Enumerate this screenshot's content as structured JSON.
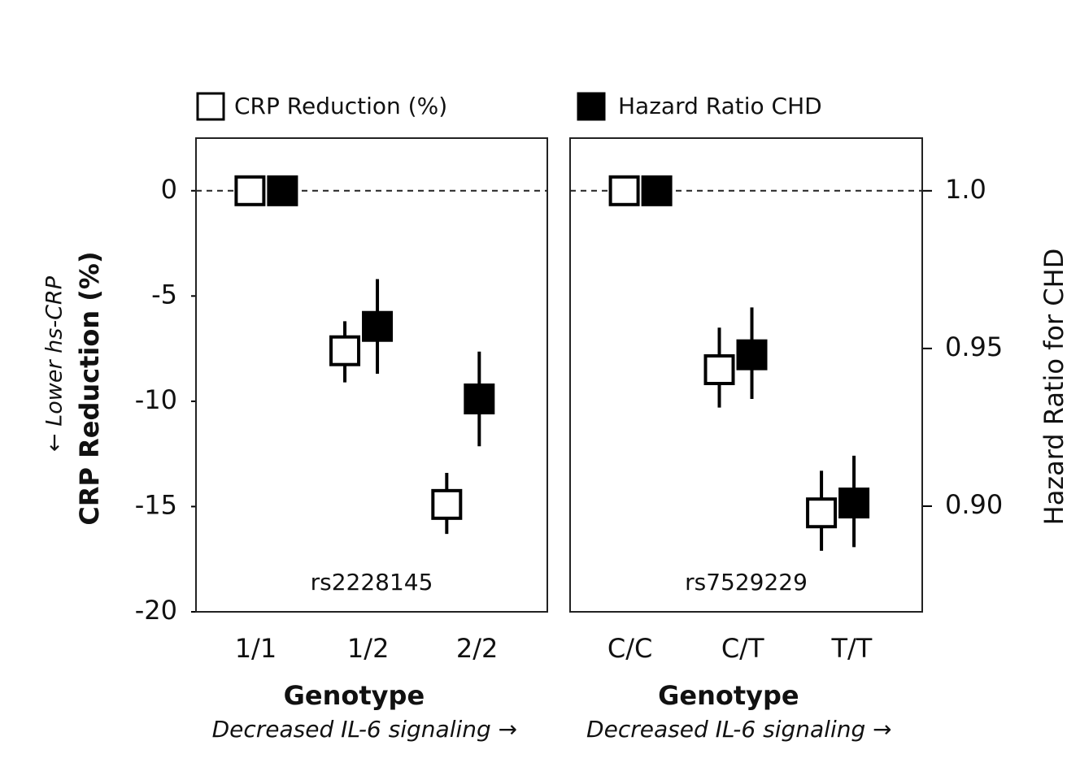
{
  "chart_data": {
    "type": "dot-errorbar",
    "ylabel": "CRP Reduction (%)",
    "ylabel_note": "← Lower hs-CRP",
    "y2label": "Hazard Ratio for CHD",
    "ylim": [
      -20,
      2.5
    ],
    "yticks": [
      0,
      -5,
      -10,
      -15,
      -20
    ],
    "y2lim": [
      0.8665,
      1.0167
    ],
    "y2ticks": [
      {
        "value": 1,
        "label": "1.0"
      },
      0.95,
      {
        "value": 0.9,
        "label": "0.90"
      }
    ],
    "reference_line": 0,
    "series": [
      {
        "name": "CRP Reduction (%)",
        "color": "#ffffff",
        "axis": "y"
      },
      {
        "name": "Hazard Ratio CHD",
        "color": "#000000",
        "axis": "y2"
      }
    ],
    "panels": [
      {
        "label": "rs2228145",
        "categories": [
          "1/1",
          "1/2",
          "2/2"
        ],
        "xlabel": "Genotype",
        "xsublabel": "Decreased IL-6 signaling →",
        "series": [
          {
            "values": [
              0,
              -7.6,
              -14.9
            ],
            "low": [
              0,
              -9.1,
              -16.3
            ],
            "high": [
              0,
              -6.2,
              -13.4
            ]
          },
          {
            "values": [
              1,
              0.957,
              0.934
            ],
            "low": [
              1,
              0.942,
              0.919
            ],
            "high": [
              1,
              0.972,
              0.949
            ]
          }
        ]
      },
      {
        "label": "rs7529229",
        "categories": [
          "C/C",
          "C/T",
          "T/T"
        ],
        "xlabel": "Genotype",
        "xsublabel": "Decreased IL-6 signaling →",
        "series": [
          {
            "values": [
              0,
              -8.5,
              -15.3
            ],
            "low": [
              0,
              -10.3,
              -17.1
            ],
            "high": [
              0,
              -6.5,
              -13.3
            ]
          },
          {
            "values": [
              1,
              0.948,
              0.901
            ],
            "low": [
              1,
              0.934,
              0.887
            ],
            "high": [
              1,
              0.963,
              0.916
            ]
          }
        ]
      }
    ]
  }
}
